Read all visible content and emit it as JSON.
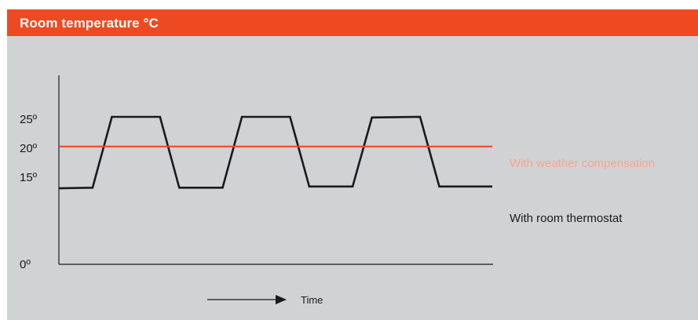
{
  "header": {
    "title": "Room temperature °C"
  },
  "colors": {
    "accent": "#ee4a22",
    "panel": "#d1d2d4",
    "line": "#1a1a1a",
    "weather_label": "#f6a58e"
  },
  "chart_data": {
    "type": "line",
    "title": "Room temperature °C",
    "xlabel": "Time",
    "ylabel": "",
    "yticks": [
      {
        "value": 0,
        "label": "0º"
      },
      {
        "value": 15,
        "label": "15º"
      },
      {
        "value": 20,
        "label": "20º"
      },
      {
        "value": 25,
        "label": "25º"
      }
    ],
    "ylim": [
      0,
      30
    ],
    "xlim": [
      0,
      10
    ],
    "grid": false,
    "series": [
      {
        "name": "With room thermostat",
        "color": "#1a1a1a",
        "points": [
          {
            "x": 0.0,
            "y": 13.1
          },
          {
            "x": 0.7,
            "y": 13.2
          },
          {
            "x": 1.1,
            "y": 25.4
          },
          {
            "x": 2.1,
            "y": 25.4
          },
          {
            "x": 2.5,
            "y": 13.2
          },
          {
            "x": 3.4,
            "y": 13.2
          },
          {
            "x": 3.8,
            "y": 25.4
          },
          {
            "x": 4.8,
            "y": 25.4
          },
          {
            "x": 5.2,
            "y": 13.4
          },
          {
            "x": 6.1,
            "y": 13.4
          },
          {
            "x": 6.5,
            "y": 25.3
          },
          {
            "x": 7.5,
            "y": 25.4
          },
          {
            "x": 7.9,
            "y": 13.4
          },
          {
            "x": 9.0,
            "y": 13.4
          }
        ]
      },
      {
        "name": "With weather compensation",
        "color": "#ee4a22",
        "points": [
          {
            "x": 0.0,
            "y": 20.3
          },
          {
            "x": 9.0,
            "y": 20.3
          }
        ]
      }
    ]
  }
}
